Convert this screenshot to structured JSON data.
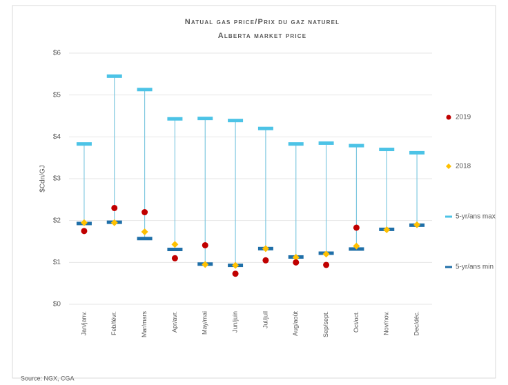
{
  "chart_data": {
    "type": "range",
    "title": "Natual gas price/Prix du gaz naturel",
    "subtitle": "Alberta market price",
    "y_label": "$Cdn/GJ",
    "source": "Source: NGX, CGA",
    "categories": [
      "Jan/janv.",
      "Feb/févr.",
      "Mar/mars",
      "Apr/avr.",
      "May/mai",
      "Jun/juin",
      "Jul/juil",
      "Aug/août",
      "Sep/sept.",
      "Oct/oct.",
      "Nov/nov.",
      "Dec/déc."
    ],
    "series": [
      {
        "name": "2019",
        "color": "#c00000",
        "marker": "circle",
        "values": [
          1.75,
          2.3,
          2.2,
          1.1,
          1.41,
          0.73,
          1.05,
          1.0,
          0.94,
          1.83,
          null,
          null
        ]
      },
      {
        "name": "2018",
        "color": "#ffc000",
        "marker": "diamond",
        "values": [
          1.95,
          1.95,
          1.73,
          1.43,
          0.95,
          0.93,
          1.33,
          1.12,
          1.2,
          1.39,
          1.78,
          1.9
        ]
      },
      {
        "name": "5-yr/ans max",
        "color": "#4cc3e6",
        "marker": "dash",
        "values": [
          3.83,
          5.45,
          5.13,
          4.43,
          4.44,
          4.39,
          4.2,
          3.83,
          3.85,
          3.79,
          3.7,
          3.62
        ]
      },
      {
        "name": "5-yr/ans min",
        "color": "#1f6fa8",
        "marker": "dash",
        "values": [
          1.93,
          1.96,
          1.57,
          1.31,
          0.96,
          0.93,
          1.33,
          1.13,
          1.22,
          1.32,
          1.79,
          1.89
        ]
      }
    ],
    "ylim": [
      0,
      6
    ],
    "yticks": [
      {
        "value": 0,
        "label": "$0"
      },
      {
        "value": 1,
        "label": "$1"
      },
      {
        "value": 2,
        "label": "$2"
      },
      {
        "value": 3,
        "label": "$3"
      },
      {
        "value": 4,
        "label": "$4"
      },
      {
        "value": 5,
        "label": "$5"
      },
      {
        "value": 6,
        "label": "$6"
      }
    ],
    "grid": true,
    "legend": "right"
  }
}
